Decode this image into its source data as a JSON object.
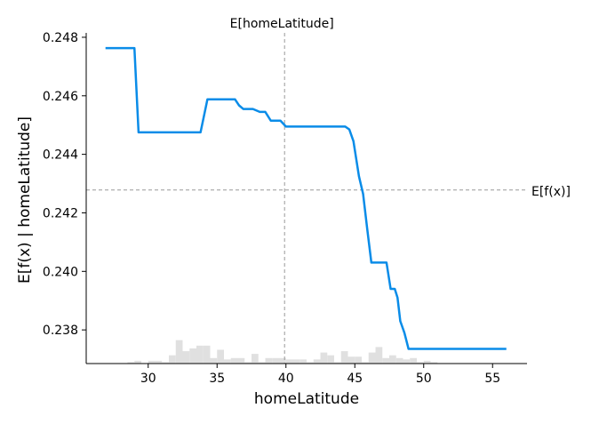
{
  "chart_data": {
    "type": "line",
    "title": "",
    "xlabel": "homeLatitude",
    "ylabel": "E[f(x) | homeLatitude]",
    "xlim": [
      25.5,
      57.5
    ],
    "ylim": [
      0.23685,
      0.24815
    ],
    "x_ticks": [
      30,
      35,
      40,
      45,
      50,
      55
    ],
    "x_tick_labels": [
      "30",
      "35",
      "40",
      "45",
      "50",
      "55"
    ],
    "y_ticks": [
      0.238,
      0.24,
      0.242,
      0.244,
      0.246,
      0.248
    ],
    "y_tick_labels": [
      "0.238",
      "0.240",
      "0.242",
      "0.244",
      "0.246",
      "0.248"
    ],
    "grid": false,
    "colors": {
      "line": "#0a8ce8",
      "histogram": "#e0e0e0",
      "reference": "#999999"
    },
    "reference_lines": {
      "vertical": {
        "x": 39.9,
        "label": "E[homeLatitude]"
      },
      "horizontal": {
        "y": 0.24278,
        "label": "E[f(x)]"
      }
    },
    "series": [
      {
        "x": [
          26.9,
          28.0,
          29.0,
          29.3,
          29.8,
          33.8,
          34.3,
          36.3,
          36.6,
          36.9,
          37.6,
          38.1,
          38.5,
          38.9,
          39.6,
          40.0,
          41.5,
          44.3,
          44.6,
          44.9,
          45.1,
          45.3,
          45.6,
          45.9,
          46.2,
          46.4,
          47.3,
          47.6,
          47.9,
          48.1,
          48.3,
          48.6,
          48.9,
          50.0,
          53.0,
          56.0
        ],
        "y": [
          0.24763,
          0.24763,
          0.24763,
          0.24475,
          0.24475,
          0.24475,
          0.24588,
          0.24588,
          0.24567,
          0.24555,
          0.24555,
          0.24545,
          0.24545,
          0.24515,
          0.24515,
          0.24495,
          0.24495,
          0.24495,
          0.24485,
          0.24445,
          0.24385,
          0.24325,
          0.24265,
          0.24145,
          0.2403,
          0.2403,
          0.2403,
          0.2394,
          0.2394,
          0.2391,
          0.2383,
          0.2379,
          0.23735,
          0.23735,
          0.23735,
          0.23735
        ]
      }
    ],
    "histogram": {
      "bin_edges": [
        27.0,
        27.5,
        28.0,
        28.5,
        29.0,
        29.5,
        30.0,
        30.5,
        31.0,
        31.5,
        32.0,
        32.5,
        33.0,
        33.5,
        34.0,
        34.5,
        35.0,
        35.5,
        36.0,
        36.5,
        37.0,
        37.5,
        38.0,
        38.5,
        39.0,
        39.5,
        40.0,
        40.5,
        41.0,
        41.5,
        42.0,
        42.5,
        43.0,
        43.5,
        44.0,
        44.5,
        45.0,
        45.5,
        46.0,
        46.5,
        47.0,
        47.5,
        48.0,
        48.5,
        49.0,
        49.5,
        50.0,
        50.5,
        51.0,
        51.5,
        52.0,
        52.5,
        53.0,
        53.5,
        54.0,
        54.5,
        55.0,
        55.5,
        56.0
      ],
      "counts": [
        0,
        0,
        0,
        0.05,
        0.1,
        0,
        0.1,
        0.1,
        0.05,
        0.3,
        0.85,
        0.45,
        0.55,
        0.65,
        0.65,
        0.2,
        0.5,
        0.15,
        0.2,
        0.2,
        0.05,
        0.35,
        0.05,
        0.2,
        0.2,
        0.2,
        0.15,
        0.15,
        0.15,
        0.05,
        0.15,
        0.4,
        0.3,
        0.05,
        0.45,
        0.25,
        0.25,
        0.05,
        0.4,
        0.6,
        0.2,
        0.3,
        0.2,
        0.15,
        0.2,
        0.05,
        0.1,
        0.05,
        0,
        0,
        0,
        0,
        0,
        0,
        0,
        0,
        0,
        0
      ]
    }
  }
}
